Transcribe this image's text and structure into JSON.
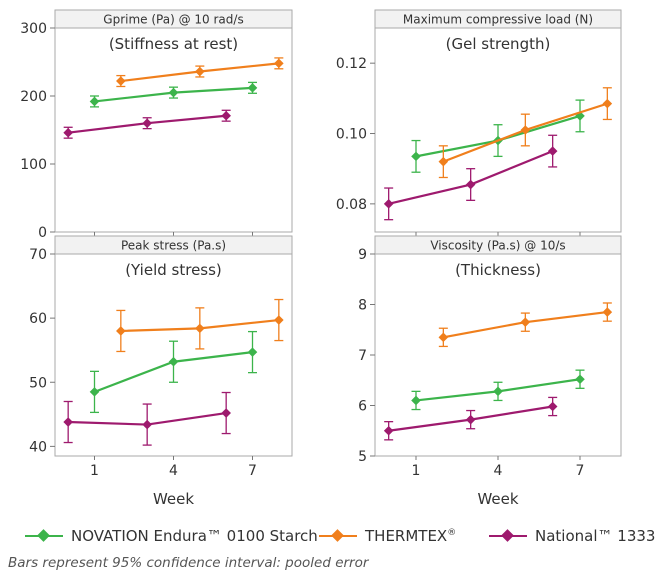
{
  "colors": {
    "novation": "#3cb44b",
    "thermtex": "#f07f1c",
    "national": "#9e1a6e",
    "frame": "#aaaaaa",
    "header_bg": "#f2f2f2"
  },
  "legend": [
    {
      "name": "NOVATION Endura™ 0100 Starch",
      "color_key": "novation"
    },
    {
      "name": "THERMTEX",
      "sup": "®",
      "color_key": "thermtex"
    },
    {
      "name": "National™ 1333",
      "color_key": "national"
    }
  ],
  "footnote": "Bars represent 95% confidence interval: pooled error",
  "chart_data": [
    {
      "type": "line",
      "header": "Gprime (Pa) @ 10 rad/s",
      "title": "(Stiffness at rest)",
      "ylim": [
        0,
        300
      ],
      "yticks": [
        0,
        100,
        200,
        300
      ],
      "ytick_labels": [
        "0",
        "100",
        "200",
        "300"
      ],
      "x_ticks": [
        1,
        4,
        7
      ],
      "x_tick_labels": [],
      "xlabel": "",
      "series": [
        {
          "name": "NOVATION Endura™ 0100 Starch",
          "color_key": "novation",
          "x": [
            1,
            4,
            7
          ],
          "y": [
            192,
            205,
            212
          ],
          "err": [
            8,
            8,
            8
          ]
        },
        {
          "name": "THERMTEX®",
          "color_key": "thermtex",
          "x": [
            2,
            5,
            8
          ],
          "y": [
            222,
            236,
            248
          ],
          "err": [
            8,
            8,
            8
          ]
        },
        {
          "name": "National™ 1333",
          "color_key": "national",
          "x": [
            0,
            3,
            6
          ],
          "y": [
            146,
            160,
            171
          ],
          "err": [
            8,
            8,
            8
          ]
        }
      ]
    },
    {
      "type": "line",
      "header": "Maximum compressive load (N)",
      "title": "(Gel strength)",
      "ylim": [
        0.072,
        0.13
      ],
      "yticks": [
        0.08,
        0.1,
        0.12
      ],
      "ytick_labels": [
        "0.08",
        "0.10",
        "0.12"
      ],
      "x_ticks": [
        1,
        4,
        7
      ],
      "x_tick_labels": [],
      "xlabel": "",
      "series": [
        {
          "name": "NOVATION Endura™ 0100 Starch",
          "color_key": "novation",
          "x": [
            1,
            4,
            7
          ],
          "y": [
            0.0935,
            0.098,
            0.105
          ],
          "err": [
            0.0045,
            0.0045,
            0.0045
          ]
        },
        {
          "name": "THERMTEX®",
          "color_key": "thermtex",
          "x": [
            2,
            5,
            8
          ],
          "y": [
            0.092,
            0.101,
            0.1085
          ],
          "err": [
            0.0045,
            0.0045,
            0.0045
          ]
        },
        {
          "name": "National™ 1333",
          "color_key": "national",
          "x": [
            0,
            3,
            6
          ],
          "y": [
            0.08,
            0.0855,
            0.095
          ],
          "err": [
            0.0045,
            0.0045,
            0.0045
          ]
        }
      ]
    },
    {
      "type": "line",
      "header": "Peak stress (Pa.s)",
      "title": "(Yield stress)",
      "ylim": [
        38.5,
        70
      ],
      "yticks": [
        40,
        50,
        60,
        70
      ],
      "ytick_labels": [
        "40",
        "50",
        "60",
        "70"
      ],
      "x_ticks": [
        1,
        4,
        7
      ],
      "x_tick_labels": [
        "1",
        "4",
        "7"
      ],
      "xlabel": "Week",
      "series": [
        {
          "name": "NOVATION Endura™ 0100 Starch",
          "color_key": "novation",
          "x": [
            1,
            4,
            7
          ],
          "y": [
            48.5,
            53.2,
            54.7
          ],
          "err": [
            3.2,
            3.2,
            3.2
          ]
        },
        {
          "name": "THERMTEX®",
          "color_key": "thermtex",
          "x": [
            2,
            5,
            8
          ],
          "y": [
            58.0,
            58.4,
            59.7
          ],
          "err": [
            3.2,
            3.2,
            3.2
          ]
        },
        {
          "name": "National™ 1333",
          "color_key": "national",
          "x": [
            0,
            3,
            6
          ],
          "y": [
            43.8,
            43.4,
            45.2
          ],
          "err": [
            3.2,
            3.2,
            3.2
          ]
        }
      ]
    },
    {
      "type": "line",
      "header": "Viscosity (Pa.s) @ 10/s",
      "title": "(Thickness)",
      "ylim": [
        5,
        9
      ],
      "yticks": [
        5,
        6,
        7,
        8,
        9
      ],
      "ytick_labels": [
        "5",
        "6",
        "7",
        "8",
        "9"
      ],
      "x_ticks": [
        1,
        4,
        7
      ],
      "x_tick_labels": [
        "1",
        "4",
        "7"
      ],
      "xlabel": "Week",
      "series": [
        {
          "name": "NOVATION Endura™ 0100 Starch",
          "color_key": "novation",
          "x": [
            1,
            4,
            7
          ],
          "y": [
            6.1,
            6.28,
            6.52
          ],
          "err": [
            0.18,
            0.18,
            0.18
          ]
        },
        {
          "name": "THERMTEX®",
          "color_key": "thermtex",
          "x": [
            2,
            5,
            8
          ],
          "y": [
            7.35,
            7.65,
            7.85
          ],
          "err": [
            0.18,
            0.18,
            0.18
          ]
        },
        {
          "name": "National™ 1333",
          "color_key": "national",
          "x": [
            0,
            3,
            6
          ],
          "y": [
            5.5,
            5.72,
            5.98
          ],
          "err": [
            0.18,
            0.18,
            0.18
          ]
        }
      ]
    }
  ]
}
